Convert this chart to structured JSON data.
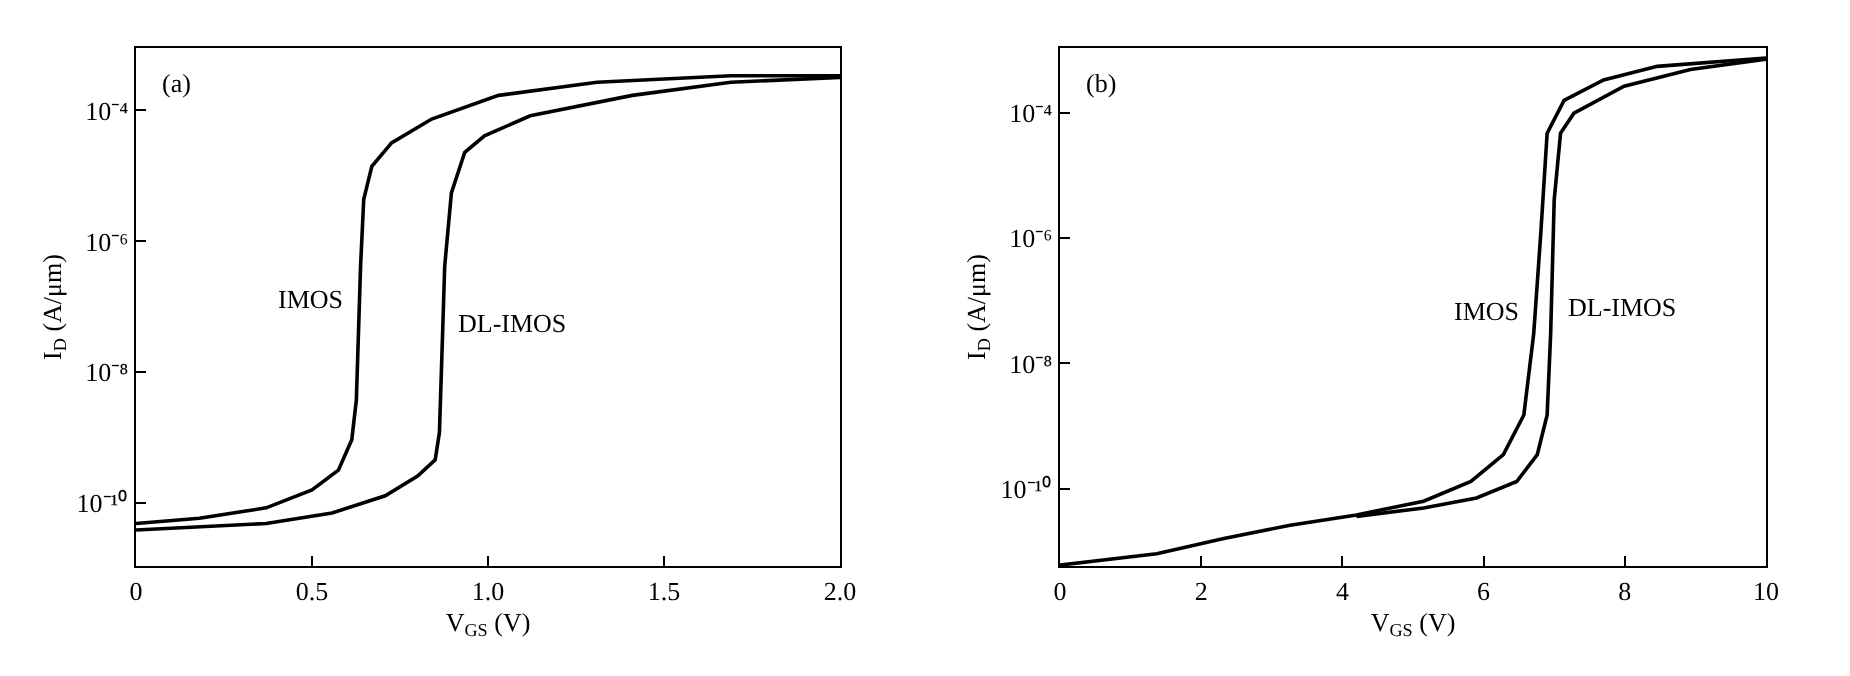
{
  "chart_data": [
    {
      "type": "line",
      "title": "(a)",
      "xlabel": "V$_{GS}$ (V)",
      "ylabel": "I$_{D}$ (A/μm)",
      "log": true,
      "grid": false,
      "legend": false,
      "marker": "none",
      "line_style": "solid",
      "xlim": [
        0,
        2
      ],
      "xticks": [
        0,
        0.5,
        {
          "value": 1,
          "label": "1.0"
        },
        1.5,
        {
          "value": 2,
          "label": "2.0"
        }
      ],
      "ylim": [
        1.1e-11,
        0.0009
      ],
      "yticks": [
        {
          "value": 1e-10,
          "label": "10⁻¹⁰"
        },
        {
          "value": 1e-08,
          "label": "10⁻⁸"
        },
        {
          "value": 1e-06,
          "label": "10⁻⁶"
        },
        {
          "value": 0.0001,
          "label": "10⁻⁴"
        }
      ],
      "series": [
        {
          "name": "IMOS",
          "color": "#000000",
          "x": [
            0,
            0.18,
            0.37,
            0.5,
            0.575,
            0.613,
            0.626,
            0.632,
            0.638,
            0.647,
            0.67,
            0.726,
            0.84,
            1.03,
            1.31,
            1.69,
            2.0
          ],
          "values": [
            4.9e-11,
            5.9e-11,
            8.5e-11,
            1.6e-10,
            3.2e-10,
            9.3e-10,
            3.8e-09,
            4e-08,
            4.2e-07,
            4.4e-06,
            1.4e-05,
            3.2e-05,
            7.4e-05,
            0.00017,
            0.00027,
            0.00034,
            0.00034
          ]
        },
        {
          "name": "DL-IMOS",
          "color": "#000000",
          "x": [
            0,
            0.37,
            0.557,
            0.708,
            0.8,
            0.85,
            0.862,
            0.868,
            0.877,
            0.896,
            0.934,
            0.99,
            1.12,
            1.41,
            1.69,
            2.0
          ],
          "values": [
            3.9e-11,
            4.9e-11,
            7.1e-11,
            1.3e-10,
            2.6e-10,
            4.6e-10,
            1.2e-09,
            1.2e-08,
            4.2e-07,
            5.5e-06,
            2.3e-05,
            4.1e-05,
            8.3e-05,
            0.00017,
            0.00027,
            0.00032
          ]
        }
      ]
    },
    {
      "type": "line",
      "title": "(b)",
      "xlabel": "V$_{GS}$ (V)",
      "ylabel": "I$_{D}$ (A/μm)",
      "log": true,
      "grid": false,
      "legend": false,
      "marker": "none",
      "line_style": "solid",
      "xlim": [
        0,
        10
      ],
      "xticks": [
        0,
        2,
        4,
        6,
        8,
        10
      ],
      "ylim": [
        5.8e-12,
        0.0011
      ],
      "yticks": [
        {
          "value": 1e-10,
          "label": "10⁻¹⁰"
        },
        {
          "value": 1e-08,
          "label": "10⁻⁸"
        },
        {
          "value": 1e-06,
          "label": "10⁻⁶"
        },
        {
          "value": 0.0001,
          "label": "10⁻⁴"
        }
      ],
      "series": [
        {
          "name": "IMOS",
          "color": "#000000",
          "x": [
            0,
            1.37,
            2.32,
            3.26,
            4.2,
            5.15,
            5.82,
            6.28,
            6.57,
            6.71,
            6.81,
            6.9,
            7.14,
            7.7,
            8.46,
            10
          ],
          "values": [
            6e-12,
            9.1e-12,
            1.6e-11,
            2.6e-11,
            3.8e-11,
            6.3e-11,
            1.3e-10,
            3.5e-10,
            1.5e-09,
            3e-08,
            1.2e-06,
            4.8e-05,
            0.00016,
            0.00034,
            0.00056,
            0.00076
          ]
        },
        {
          "name": "DL-IMOS",
          "color": "#000000",
          "x": [
            4.2,
            5.15,
            5.9,
            6.47,
            6.76,
            6.9,
            6.95,
            7.0,
            7.09,
            7.28,
            7.99,
            8.93,
            10
          ],
          "values": [
            3.6e-11,
            4.9e-11,
            7.1e-11,
            1.3e-10,
            3.5e-10,
            1.5e-09,
            3e-08,
            4.1e-06,
            4.8e-05,
            0.0001,
            0.00027,
            0.0005,
            0.00073
          ]
        }
      ]
    }
  ]
}
